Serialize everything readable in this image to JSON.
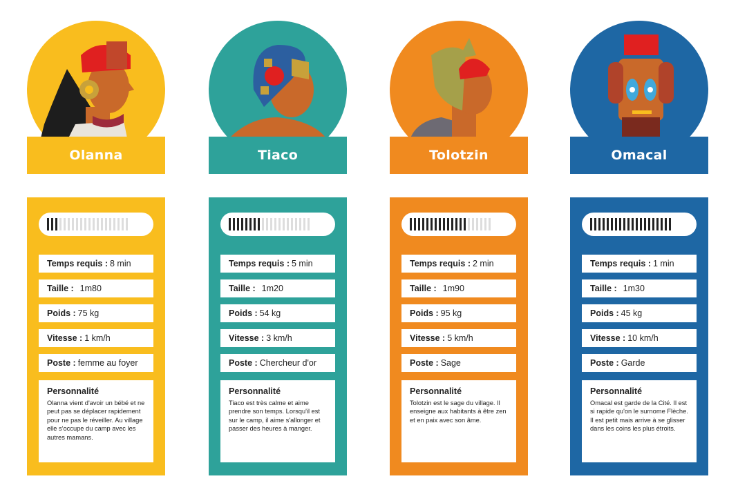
{
  "colors": {
    "yellow": "#f9bd1e",
    "teal": "#2ea29a",
    "orange": "#f08a1f",
    "blue": "#1e67a4"
  },
  "characters": [
    {
      "name": "Olanna",
      "color": "#f9bd1e",
      "meter_level": 3,
      "meter_total": 20,
      "temps_label": "Temps requis :",
      "temps_value": "8 min",
      "taille_label": "Taille :",
      "taille_value": "1m80",
      "poids_label": "Poids :",
      "poids_value": "75 kg",
      "vitesse_label": "Vitesse :",
      "vitesse_value": "1 km/h",
      "poste_label": "Poste :",
      "poste_value": "femme au foyer",
      "personnalite_title": "Personnalité",
      "personnalite_text": "Olanna vient d'avoir un bébé et ne peut pas se déplacer rapidement pour ne pas le réveiller. Au village elle s'occupe du camp avec les autres mamans."
    },
    {
      "name": "Tiaco",
      "color": "#2ea29a",
      "meter_level": 8,
      "meter_total": 20,
      "temps_label": "Temps requis :",
      "temps_value": "5 min",
      "taille_label": "Taille :",
      "taille_value": "1m20",
      "poids_label": "Poids :",
      "poids_value": "54 kg",
      "vitesse_label": "Vitesse :",
      "vitesse_value": "3 km/h",
      "poste_label": "Poste :",
      "poste_value": "Chercheur d'or",
      "personnalite_title": "Personnalité",
      "personnalite_text": "Tiaco est très calme et aime prendre son temps. Lorsqu'il est sur le camp, il aime s'allonger et passer des heures à manger."
    },
    {
      "name": "Tolotzin",
      "color": "#f08a1f",
      "meter_level": 14,
      "meter_total": 20,
      "temps_label": "Temps requis :",
      "temps_value": "2 min",
      "taille_label": "Taille :",
      "taille_value": "1m90",
      "poids_label": "Poids :",
      "poids_value": "95 kg",
      "vitesse_label": "Vitesse :",
      "vitesse_value": "5 km/h",
      "poste_label": "Poste :",
      "poste_value": "Sage",
      "personnalite_title": "Personnalité",
      "personnalite_text": "Tolotzin est le sage du village. Il enseigne aux habitants à être zen et en paix avec son âme."
    },
    {
      "name": "Omacal",
      "color": "#1e67a4",
      "meter_level": 20,
      "meter_total": 20,
      "temps_label": "Temps requis :",
      "temps_value": "1 min",
      "taille_label": "Taille :",
      "taille_value": "1m30",
      "poids_label": "Poids :",
      "poids_value": "45 kg",
      "vitesse_label": "Vitesse :",
      "vitesse_value": "10 km/h",
      "poste_label": "Poste :",
      "poste_value": "Garde",
      "personnalite_title": "Personnalité",
      "personnalite_text": "Omacal est garde de la Cité. Il est si rapide qu'on le surnome Flèche. Il est petit mais arrive à se glisser dans les coins les plus étroits."
    }
  ]
}
